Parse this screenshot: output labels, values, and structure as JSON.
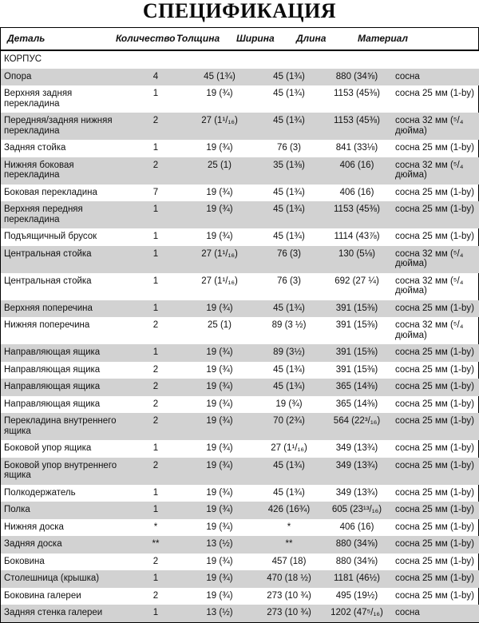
{
  "title": "СПЕЦИФИКАЦИЯ",
  "colors": {
    "row_shade": "#d2d2d2",
    "border": "#000000"
  },
  "table": {
    "columns": [
      "Деталь",
      "Количество",
      "Толщина",
      "Ширина",
      "Длина",
      "Материал"
    ],
    "section": "КОРПУС",
    "rows": [
      {
        "detail": "Опора",
        "qty": "4",
        "thickness": "45 (1¾)",
        "width": "45 (1¾)",
        "length": "880 (34⅝)",
        "material": "сосна"
      },
      {
        "detail": "Верхняя задняя перекладина",
        "qty": "1",
        "thickness": "19 (¾)",
        "width": "45 (1¾)",
        "length": "1153 (45⅜)",
        "material": "сосна 25 мм (1-by)"
      },
      {
        "detail": "Передняя/задняя нижняя перекладина",
        "qty": "2",
        "thickness": "27 (1¹/₁₆)",
        "width": "45 (1¾)",
        "length": "1153 (45⅜)",
        "material": "сосна 32 мм (⁵/₄ дюйма)"
      },
      {
        "detail": "Задняя стойка",
        "qty": "1",
        "thickness": "19 (¾)",
        "width": "76 (3)",
        "length": "841 (33⅛)",
        "material": "сосна 25 мм (1-by)"
      },
      {
        "detail": "Нижняя боковая перекладина",
        "qty": "2",
        "thickness": "25 (1)",
        "width": "35 (1⅜)",
        "length": "406 (16)",
        "material": "сосна 32 мм (⁵/₄ дюйма)"
      },
      {
        "detail": "Боковая перекладина",
        "qty": "7",
        "thickness": "19 (¾)",
        "width": "45 (1¾)",
        "length": "406 (16)",
        "material": "сосна 25 мм (1-by)"
      },
      {
        "detail": "Верхняя передняя перекладина",
        "qty": "1",
        "thickness": "19 (¾)",
        "width": "45 (1¾)",
        "length": "1153 (45⅜)",
        "material": "сосна 25 мм (1-by)"
      },
      {
        "detail": "Подъящичный брусок",
        "qty": "1",
        "thickness": "19 (¾)",
        "width": "45 (1¾)",
        "length": "1114 (43⅞)",
        "material": "сосна 25 мм (1-by)"
      },
      {
        "detail": "Центральная стойка",
        "qty": "1",
        "thickness": "27 (1¹/₁₆)",
        "width": "76 (3)",
        "length": "130 (5⅛)",
        "material": "сосна 32 мм (⁵/₄ дюйма)"
      },
      {
        "detail": "Центральная стойка",
        "qty": "1",
        "thickness": "27 (1¹/₁₆)",
        "width": "76 (3)",
        "length": "692 (27 ¼)",
        "material": "сосна 32 мм (⁵/₄ дюйма)"
      },
      {
        "detail": "Верхняя поперечина",
        "qty": "1",
        "thickness": "19 (¾)",
        "width": "45 (1¾)",
        "length": "391 (15⅜)",
        "material": "сосна 25 мм (1-by)"
      },
      {
        "detail": "Нижняя поперечина",
        "qty": "2",
        "thickness": "25 (1)",
        "width": "89 (3 ½)",
        "length": "391 (15⅜)",
        "material": "сосна 32 мм (⁵/₄ дюйма)"
      },
      {
        "detail": "Направляющая ящика",
        "qty": "1",
        "thickness": "19 (¾)",
        "width": "89 (3½)",
        "length": "391 (15⅜)",
        "material": "сосна 25 мм (1-by)"
      },
      {
        "detail": "Направляющая ящика",
        "qty": "2",
        "thickness": "19 (¾)",
        "width": "45 (1¾)",
        "length": "391 (15⅜)",
        "material": "сосна 25 мм (1-by)"
      },
      {
        "detail": "Направляющая ящика",
        "qty": "2",
        "thickness": "19 (¾)",
        "width": "45 (1¾)",
        "length": "365 (14⅜)",
        "material": "сосна 25 мм (1-by)"
      },
      {
        "detail": "Направляющая ящика",
        "qty": "2",
        "thickness": "19 (¾)",
        "width": "19 (¾)",
        "length": "365 (14⅜)",
        "material": "сосна 25 мм (1-by)"
      },
      {
        "detail": "Перекладина внутреннего ящика",
        "qty": "2",
        "thickness": "19 (¾)",
        "width": "70 (2¾)",
        "length": "564 (22³/₁₆)",
        "material": "сосна 25 мм (1-by)"
      },
      {
        "detail": "Боковой упор ящика",
        "qty": "1",
        "thickness": "19 (¾)",
        "width": "27 (1¹/₁₆)",
        "length": "349 (13¾)",
        "material": "сосна 25 мм (1-by)"
      },
      {
        "detail": "Боковой упор внутреннего ящика",
        "qty": "2",
        "thickness": "19 (¾)",
        "width": "45 (1¾)",
        "length": "349 (13¾)",
        "material": "сосна 25 мм (1-by)"
      },
      {
        "detail": "Полкодержатель",
        "qty": "1",
        "thickness": "19 (¾)",
        "width": "45 (1¾)",
        "length": "349 (13¾)",
        "material": "сосна 25 мм (1-by)"
      },
      {
        "detail": "Полка",
        "qty": "1",
        "thickness": "19 (¾)",
        "width": "426 (16¾)",
        "length": "605 (23¹³/₁₆)",
        "material": "сосна 25 мм (1-by)"
      },
      {
        "detail": "Нижняя доска",
        "qty": "*",
        "thickness": "19 (¾)",
        "width": "*",
        "length": "406 (16)",
        "material": "сосна 25 мм (1-by)"
      },
      {
        "detail": "Задняя доска",
        "qty": "**",
        "thickness": "13 (½)",
        "width": "**",
        "length": "880 (34⅝)",
        "material": "сосна 25 мм (1-by)"
      },
      {
        "detail": "Боковина",
        "qty": "2",
        "thickness": "19 (¾)",
        "width": "457 (18)",
        "length": "880 (34⅝)",
        "material": "сосна 25 мм (1-by)"
      },
      {
        "detail": "Столешница (крышка)",
        "qty": "1",
        "thickness": "19 (¾)",
        "width": "470 (18 ½)",
        "length": "1181 (46½)",
        "material": "сосна 25 мм (1-by)"
      },
      {
        "detail": "Боковина галереи",
        "qty": "2",
        "thickness": "19 (¾)",
        "width": "273 (10 ¾)",
        "length": "495 (19½)",
        "material": "сосна 25 мм (1-by)"
      },
      {
        "detail": "Задняя стенка галереи",
        "qty": "1",
        "thickness": "13 (½)",
        "width": "273 (10 ¾)",
        "length": "1202 (47⁵/₁₆)",
        "material": "сосна"
      }
    ]
  }
}
